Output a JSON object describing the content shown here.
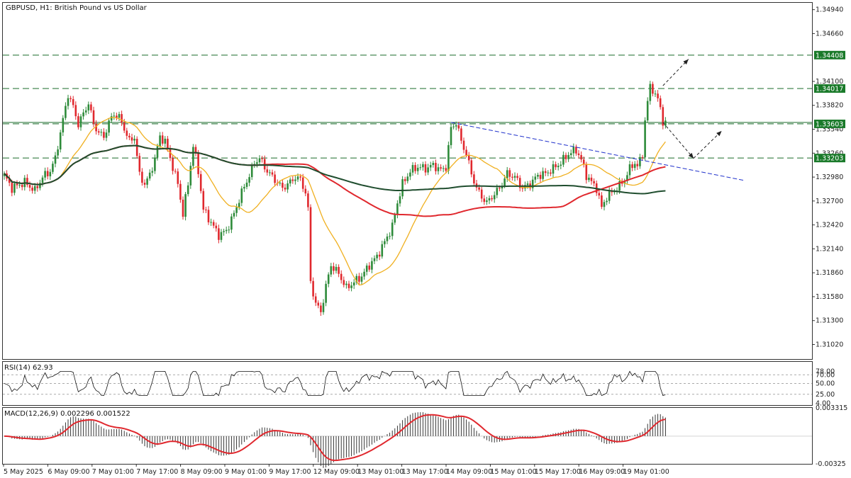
{
  "app": {
    "symbol_title": "GBPUSD, H1:  British Pound vs US Dollar"
  },
  "colors": {
    "bull": "#2e8b3a",
    "bear": "#e0282e",
    "sma_fast": "#f0b020",
    "sma_mid": "#e0282e",
    "sma_slow": "#1f4d2e",
    "level_line": "#1a6b2a",
    "trendline": "#2233cc",
    "macd_line": "#e0282e",
    "badge": "#1a7a2a"
  },
  "chart_data": [
    {
      "type": "candlestick",
      "title": "GBPUSD, H1:  British Pound vs US Dollar",
      "ylim": [
        1.3085,
        1.3502
      ],
      "y_ticks": [
        "1.34940",
        "1.34660",
        "1.34100",
        "1.33820",
        "1.33540",
        "1.33260",
        "1.32980",
        "1.32700",
        "1.32420",
        "1.32140",
        "1.31860",
        "1.31580",
        "1.31300",
        "1.31020"
      ],
      "x_ticks": [
        "5 May 2025",
        "6 May 09:00",
        "7 May 01:00",
        "7 May 17:00",
        "8 May 09:00",
        "9 May 01:00",
        "9 May 17:00",
        "12 May 09:00",
        "13 May 01:00",
        "13 May 17:00",
        "14 May 09:00",
        "15 May 01:00",
        "15 May 17:00",
        "16 May 09:00",
        "19 May 01:00"
      ],
      "level_badges": [
        {
          "label": "1.34408",
          "value": 1.34408
        },
        {
          "label": "1.34017",
          "value": 1.34017
        },
        {
          "label": "1.33603",
          "value": 1.33603
        },
        {
          "label": "1.33203",
          "value": 1.33203
        }
      ],
      "solid_level": 1.3362,
      "series_waypoints": [
        [
          0,
          1.33
        ],
        [
          3,
          1.3285
        ],
        [
          8,
          1.3292
        ],
        [
          12,
          1.3282
        ],
        [
          15,
          1.3298
        ],
        [
          18,
          1.3305
        ],
        [
          20,
          1.332
        ],
        [
          23,
          1.3365
        ],
        [
          25,
          1.3395
        ],
        [
          27,
          1.338
        ],
        [
          29,
          1.336
        ],
        [
          31,
          1.3372
        ],
        [
          33,
          1.3385
        ],
        [
          35,
          1.336
        ],
        [
          37,
          1.335
        ],
        [
          39,
          1.3345
        ],
        [
          41,
          1.3362
        ],
        [
          43,
          1.3372
        ],
        [
          45,
          1.3368
        ],
        [
          47,
          1.3355
        ],
        [
          49,
          1.334
        ],
        [
          51,
          1.3345
        ],
        [
          53,
          1.33
        ],
        [
          55,
          1.329
        ],
        [
          57,
          1.33
        ],
        [
          59,
          1.332
        ],
        [
          61,
          1.3345
        ],
        [
          63,
          1.334
        ],
        [
          65,
          1.332
        ],
        [
          68,
          1.329
        ],
        [
          70,
          1.3255
        ],
        [
          72,
          1.329
        ],
        [
          74,
          1.3335
        ],
        [
          76,
          1.3305
        ],
        [
          78,
          1.326
        ],
        [
          81,
          1.3245
        ],
        [
          84,
          1.323
        ],
        [
          87,
          1.3235
        ],
        [
          90,
          1.3255
        ],
        [
          93,
          1.328
        ],
        [
          96,
          1.33
        ],
        [
          98,
          1.3315
        ],
        [
          100,
          1.332
        ],
        [
          103,
          1.3305
        ],
        [
          106,
          1.3295
        ],
        [
          109,
          1.3285
        ],
        [
          112,
          1.3292
        ],
        [
          114,
          1.3298
        ],
        [
          116,
          1.3295
        ],
        [
          118,
          1.328
        ],
        [
          119,
          1.326
        ],
        [
          120,
          1.3175
        ],
        [
          122,
          1.315
        ],
        [
          124,
          1.314
        ],
        [
          126,
          1.317
        ],
        [
          128,
          1.3195
        ],
        [
          131,
          1.3185
        ],
        [
          134,
          1.3168
        ],
        [
          137,
          1.3175
        ],
        [
          140,
          1.3182
        ],
        [
          143,
          1.3195
        ],
        [
          146,
          1.3205
        ],
        [
          149,
          1.3222
        ],
        [
          152,
          1.324
        ],
        [
          154,
          1.3268
        ],
        [
          156,
          1.329
        ],
        [
          159,
          1.3305
        ],
        [
          162,
          1.331
        ],
        [
          165,
          1.3308
        ],
        [
          168,
          1.3312
        ],
        [
          171,
          1.3306
        ],
        [
          173,
          1.331
        ],
        [
          175,
          1.3355
        ],
        [
          177,
          1.3362
        ],
        [
          179,
          1.334
        ],
        [
          181,
          1.3325
        ],
        [
          183,
          1.3302
        ],
        [
          185,
          1.3285
        ],
        [
          187,
          1.3275
        ],
        [
          189,
          1.3268
        ],
        [
          191,
          1.3275
        ],
        [
          194,
          1.3285
        ],
        [
          197,
          1.3302
        ],
        [
          200,
          1.3298
        ],
        [
          203,
          1.3285
        ],
        [
          206,
          1.329
        ],
        [
          209,
          1.33
        ],
        [
          212,
          1.3302
        ],
        [
          215,
          1.3308
        ],
        [
          218,
          1.3315
        ],
        [
          221,
          1.3325
        ],
        [
          224,
          1.333
        ],
        [
          226,
          1.3318
        ],
        [
          228,
          1.33
        ],
        [
          230,
          1.3292
        ],
        [
          232,
          1.3285
        ],
        [
          234,
          1.3262
        ],
        [
          236,
          1.3275
        ],
        [
          238,
          1.328
        ],
        [
          241,
          1.3288
        ],
        [
          243,
          1.3295
        ],
        [
          245,
          1.3308
        ],
        [
          247,
          1.3315
        ],
        [
          248,
          1.331
        ],
        [
          250,
          1.3325
        ],
        [
          251,
          1.3365
        ],
        [
          253,
          1.3405
        ],
        [
          255,
          1.3395
        ],
        [
          257,
          1.338
        ],
        [
          258,
          1.3362
        ]
      ],
      "trendline": [
        [
          175,
          1.3362
        ],
        [
          290,
          1.3294
        ]
      ],
      "forecast_arrows": [
        [
          [
            258,
            1.3362
          ],
          [
            270,
            1.332
          ],
          [
            281,
            1.3352
          ]
        ],
        [
          [
            258,
            1.3405
          ],
          [
            268,
            1.3436
          ]
        ]
      ]
    },
    {
      "type": "line",
      "title": "RSI(14) 62.93",
      "ylim": [
        0,
        100
      ],
      "y_ticks": [
        "78.00",
        "70.00",
        "50.00",
        "25.00",
        "4.00"
      ]
    },
    {
      "type": "bar",
      "title": "MACD(12,26,9) 0.002296 0.001522",
      "ylim": [
        -0.00325,
        0.003315
      ],
      "y_ticks": [
        "0.003315",
        "-0.00325"
      ]
    }
  ]
}
